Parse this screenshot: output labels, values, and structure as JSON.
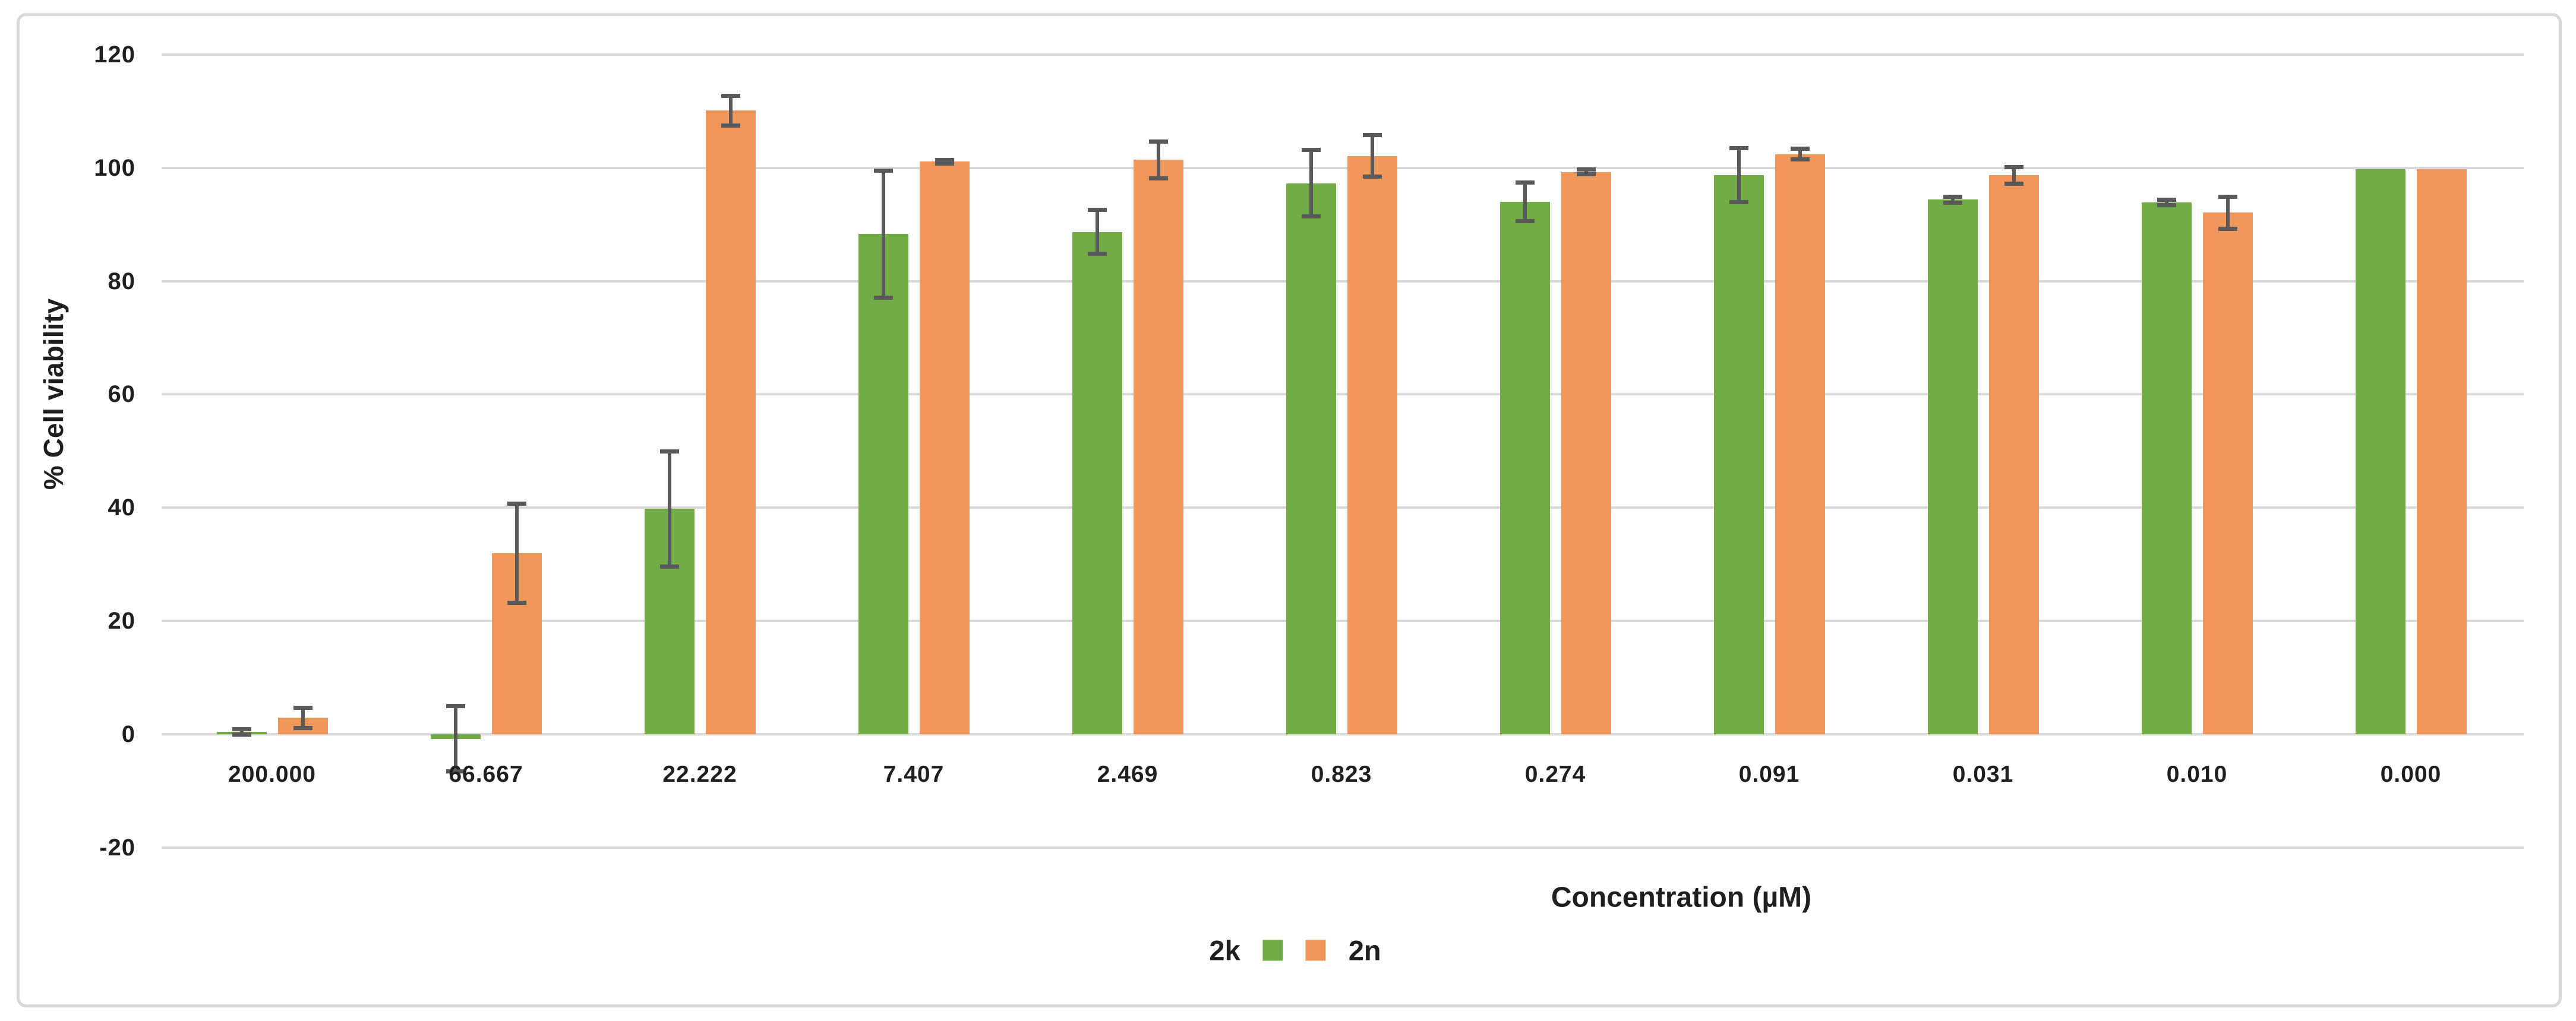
{
  "chart_data": {
    "type": "bar",
    "title": "",
    "xlabel": "Concentration (µM)",
    "ylabel": "% Cell viability",
    "categories": [
      "200.000",
      "66.667",
      "22.222",
      "7.407",
      "2.469",
      "0.823",
      "0.274",
      "0.091",
      "0.031",
      "0.010",
      "0.000"
    ],
    "series": [
      {
        "name": "2k",
        "color": "#70AD47",
        "values": [
          0.4,
          -0.8,
          39.8,
          88.3,
          88.7,
          97.3,
          94.0,
          98.7,
          94.4,
          93.9,
          99.8
        ],
        "errors": [
          0.5,
          5.8,
          10.2,
          11.3,
          3.9,
          5.9,
          3.5,
          4.8,
          0.6,
          0.5,
          0
        ]
      },
      {
        "name": "2n",
        "color": "#EF975B",
        "values": [
          2.9,
          32.0,
          110.1,
          101.1,
          101.4,
          102.1,
          99.3,
          102.4,
          98.7,
          92.1,
          99.8
        ],
        "errors": [
          1.8,
          8.8,
          2.7,
          0.4,
          3.3,
          3.7,
          0.5,
          1.0,
          1.5,
          2.9,
          0
        ]
      }
    ],
    "yticks": [
      120,
      100,
      80,
      60,
      40,
      20,
      0,
      -20
    ],
    "ylim": [
      -20,
      120
    ],
    "grid": true,
    "legend_position": "bottom",
    "gridline_color": "#D9D9D9",
    "error_bar_color": "#595959",
    "frame_border_color": "#D9D9D9",
    "text_color": "#1f1f1f"
  }
}
